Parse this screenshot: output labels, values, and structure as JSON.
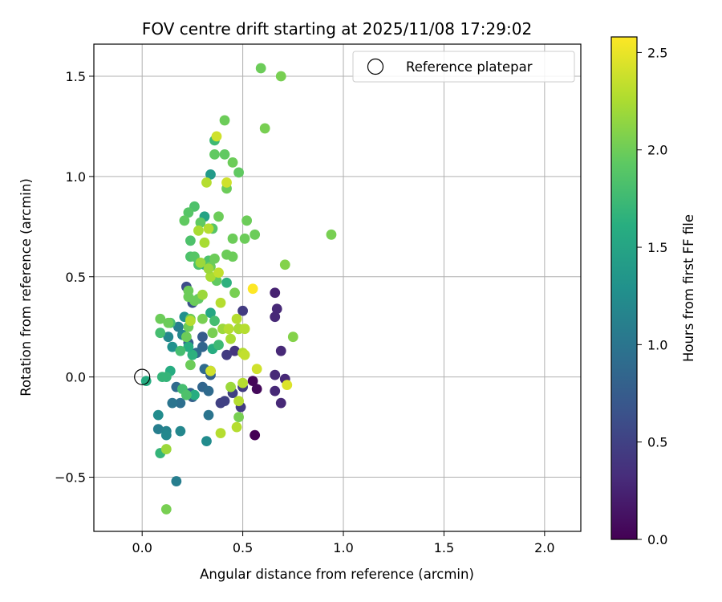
{
  "chart_data": {
    "type": "scatter",
    "title": "FOV centre drift starting at 2025/11/08 17:29:02",
    "xlabel": "Angular distance from reference (arcmin)",
    "ylabel": "Rotation from reference (arcmin)",
    "xlim": [
      -0.24,
      2.18
    ],
    "ylim": [
      -0.77,
      1.66
    ],
    "xticks": [
      0.0,
      0.5,
      1.0,
      1.5,
      2.0
    ],
    "xtick_labels": [
      "0.0",
      "0.5",
      "1.0",
      "1.5",
      "2.0"
    ],
    "yticks": [
      -0.5,
      0.0,
      0.5,
      1.0,
      1.5
    ],
    "ytick_labels": [
      "−0.5",
      "0.0",
      "0.5",
      "1.0",
      "1.5"
    ],
    "grid": true,
    "legend": {
      "label": "Reference platepar",
      "location": "top-right"
    },
    "reference_point": {
      "x": 0.0,
      "y": 0.0
    },
    "colorbar": {
      "label": "Hours from first FF file",
      "range": [
        0.0,
        2.58
      ],
      "ticks": [
        0.0,
        0.5,
        1.0,
        1.5,
        2.0,
        2.5
      ],
      "tick_labels": [
        "0.0",
        "0.5",
        "1.0",
        "1.5",
        "2.0",
        "2.5"
      ],
      "colormap": "viridis"
    },
    "points": [
      {
        "x": 0.56,
        "y": -0.29,
        "t": 0.0
      },
      {
        "x": 0.55,
        "y": -0.02,
        "t": 0.03
      },
      {
        "x": 0.57,
        "y": -0.06,
        "t": 0.05
      },
      {
        "x": 0.66,
        "y": 0.42,
        "t": 0.25
      },
      {
        "x": 0.67,
        "y": 0.34,
        "t": 0.3
      },
      {
        "x": 0.66,
        "y": 0.3,
        "t": 0.3
      },
      {
        "x": 0.69,
        "y": 0.13,
        "t": 0.3
      },
      {
        "x": 0.66,
        "y": 0.01,
        "t": 0.3
      },
      {
        "x": 0.71,
        "y": -0.01,
        "t": 0.3
      },
      {
        "x": 0.66,
        "y": -0.07,
        "t": 0.3
      },
      {
        "x": 0.69,
        "y": -0.13,
        "t": 0.3
      },
      {
        "x": 0.5,
        "y": 0.33,
        "t": 0.45
      },
      {
        "x": 0.48,
        "y": 0.24,
        "t": 0.45
      },
      {
        "x": 0.46,
        "y": 0.13,
        "t": 0.4
      },
      {
        "x": 0.42,
        "y": 0.11,
        "t": 0.45
      },
      {
        "x": 0.5,
        "y": -0.05,
        "t": 0.45
      },
      {
        "x": 0.45,
        "y": -0.08,
        "t": 0.5
      },
      {
        "x": 0.49,
        "y": -0.15,
        "t": 0.45
      },
      {
        "x": 0.41,
        "y": -0.12,
        "t": 0.5
      },
      {
        "x": 0.39,
        "y": -0.13,
        "t": 0.5
      },
      {
        "x": 0.22,
        "y": 0.45,
        "t": 0.6
      },
      {
        "x": 0.25,
        "y": 0.37,
        "t": 0.65
      },
      {
        "x": 0.3,
        "y": 0.2,
        "t": 0.75
      },
      {
        "x": 0.23,
        "y": 0.17,
        "t": 0.8
      },
      {
        "x": 0.3,
        "y": 0.15,
        "t": 0.85
      },
      {
        "x": 0.27,
        "y": 0.12,
        "t": 0.9
      },
      {
        "x": 0.31,
        "y": 0.04,
        "t": 0.9
      },
      {
        "x": 0.34,
        "y": 0.03,
        "t": 0.85
      },
      {
        "x": 0.34,
        "y": 0.01,
        "t": 0.8
      },
      {
        "x": 0.3,
        "y": -0.05,
        "t": 0.85
      },
      {
        "x": 0.33,
        "y": -0.07,
        "t": 0.9
      },
      {
        "x": 0.24,
        "y": -0.08,
        "t": 0.85
      },
      {
        "x": 0.25,
        "y": -0.1,
        "t": 0.8
      },
      {
        "x": 0.33,
        "y": -0.19,
        "t": 1.0
      },
      {
        "x": 0.32,
        "y": -0.32,
        "t": 1.25
      },
      {
        "x": 0.17,
        "y": -0.05,
        "t": 0.9
      },
      {
        "x": 0.19,
        "y": -0.13,
        "t": 0.95
      },
      {
        "x": 0.15,
        "y": -0.13,
        "t": 1.0
      },
      {
        "x": 0.19,
        "y": -0.27,
        "t": 1.2
      },
      {
        "x": 0.08,
        "y": -0.26,
        "t": 1.1
      },
      {
        "x": 0.12,
        "y": -0.27,
        "t": 1.15
      },
      {
        "x": 0.12,
        "y": -0.29,
        "t": 1.2
      },
      {
        "x": 0.08,
        "y": -0.19,
        "t": 1.25
      },
      {
        "x": 0.17,
        "y": -0.52,
        "t": 1.1
      },
      {
        "x": 0.18,
        "y": 0.25,
        "t": 1.1
      },
      {
        "x": 0.2,
        "y": 0.21,
        "t": 1.2
      },
      {
        "x": 0.13,
        "y": 0.2,
        "t": 1.2
      },
      {
        "x": 0.15,
        "y": 0.15,
        "t": 1.3
      },
      {
        "x": 0.21,
        "y": 0.3,
        "t": 1.3
      },
      {
        "x": 0.34,
        "y": 1.01,
        "t": 1.4
      },
      {
        "x": 0.31,
        "y": 0.8,
        "t": 1.5
      },
      {
        "x": 0.31,
        "y": 0.56,
        "t": 1.5
      },
      {
        "x": 0.34,
        "y": 0.32,
        "t": 1.55
      },
      {
        "x": 0.35,
        "y": 0.14,
        "t": 1.6
      },
      {
        "x": 0.25,
        "y": 0.11,
        "t": 1.65
      },
      {
        "x": 0.23,
        "y": 0.15,
        "t": 1.6
      },
      {
        "x": 0.26,
        "y": -0.09,
        "t": 1.6
      },
      {
        "x": 0.14,
        "y": 0.03,
        "t": 1.6
      },
      {
        "x": 0.12,
        "y": 0.0,
        "t": 1.7
      },
      {
        "x": 0.1,
        "y": 0.0,
        "t": 1.7
      },
      {
        "x": 0.02,
        "y": -0.02,
        "t": 1.6
      },
      {
        "x": 0.09,
        "y": -0.38,
        "t": 1.7
      },
      {
        "x": 0.36,
        "y": 1.18,
        "t": 1.75
      },
      {
        "x": 0.42,
        "y": 0.47,
        "t": 1.65
      },
      {
        "x": 0.38,
        "y": 0.16,
        "t": 1.75
      },
      {
        "x": 0.2,
        "y": -0.06,
        "t": 1.8
      },
      {
        "x": 0.22,
        "y": -0.09,
        "t": 1.85
      },
      {
        "x": 0.36,
        "y": 0.28,
        "t": 1.8
      },
      {
        "x": 0.14,
        "y": 0.27,
        "t": 1.8
      },
      {
        "x": 0.09,
        "y": 0.22,
        "t": 1.8
      },
      {
        "x": 0.19,
        "y": 0.13,
        "t": 1.8
      },
      {
        "x": 0.24,
        "y": 0.68,
        "t": 1.85
      },
      {
        "x": 0.26,
        "y": 0.85,
        "t": 1.85
      },
      {
        "x": 0.23,
        "y": 0.82,
        "t": 1.9
      },
      {
        "x": 0.21,
        "y": 0.78,
        "t": 1.95
      },
      {
        "x": 0.24,
        "y": 0.6,
        "t": 1.85
      },
      {
        "x": 0.26,
        "y": 0.6,
        "t": 1.9
      },
      {
        "x": 0.28,
        "y": 0.56,
        "t": 1.85
      },
      {
        "x": 0.33,
        "y": 0.58,
        "t": 1.85
      },
      {
        "x": 0.35,
        "y": 0.74,
        "t": 1.9
      },
      {
        "x": 0.29,
        "y": 0.77,
        "t": 1.95
      },
      {
        "x": 0.36,
        "y": 1.11,
        "t": 1.95
      },
      {
        "x": 0.41,
        "y": 1.11,
        "t": 1.95
      },
      {
        "x": 0.41,
        "y": 1.28,
        "t": 2.0
      },
      {
        "x": 0.45,
        "y": 1.07,
        "t": 2.0
      },
      {
        "x": 0.48,
        "y": 1.02,
        "t": 1.95
      },
      {
        "x": 0.42,
        "y": 0.94,
        "t": 2.0
      },
      {
        "x": 0.38,
        "y": 0.8,
        "t": 2.0
      },
      {
        "x": 0.52,
        "y": 0.78,
        "t": 2.0
      },
      {
        "x": 0.56,
        "y": 0.71,
        "t": 2.0
      },
      {
        "x": 0.45,
        "y": 0.69,
        "t": 2.0
      },
      {
        "x": 0.51,
        "y": 0.69,
        "t": 2.0
      },
      {
        "x": 0.42,
        "y": 0.61,
        "t": 2.0
      },
      {
        "x": 0.45,
        "y": 0.6,
        "t": 2.0
      },
      {
        "x": 0.36,
        "y": 0.59,
        "t": 2.0
      },
      {
        "x": 0.37,
        "y": 0.48,
        "t": 1.95
      },
      {
        "x": 0.34,
        "y": 0.55,
        "t": 2.0
      },
      {
        "x": 0.46,
        "y": 0.42,
        "t": 2.05
      },
      {
        "x": 0.28,
        "y": 0.39,
        "t": 1.95
      },
      {
        "x": 0.23,
        "y": 0.4,
        "t": 2.0
      },
      {
        "x": 0.23,
        "y": 0.43,
        "t": 2.0
      },
      {
        "x": 0.26,
        "y": 0.38,
        "t": 2.0
      },
      {
        "x": 0.3,
        "y": 0.29,
        "t": 2.05
      },
      {
        "x": 0.24,
        "y": 0.29,
        "t": 2.0
      },
      {
        "x": 0.23,
        "y": 0.25,
        "t": 2.0
      },
      {
        "x": 0.22,
        "y": 0.2,
        "t": 2.0
      },
      {
        "x": 0.35,
        "y": 0.22,
        "t": 2.05
      },
      {
        "x": 0.13,
        "y": 0.27,
        "t": 2.0
      },
      {
        "x": 0.09,
        "y": 0.29,
        "t": 2.0
      },
      {
        "x": 0.24,
        "y": 0.06,
        "t": 2.0
      },
      {
        "x": 0.48,
        "y": -0.2,
        "t": 2.05
      },
      {
        "x": 0.59,
        "y": 1.54,
        "t": 2.0
      },
      {
        "x": 0.69,
        "y": 1.5,
        "t": 2.05
      },
      {
        "x": 0.61,
        "y": 1.24,
        "t": 2.05
      },
      {
        "x": 0.94,
        "y": 0.71,
        "t": 2.05
      },
      {
        "x": 0.71,
        "y": 0.56,
        "t": 2.1
      },
      {
        "x": 0.75,
        "y": 0.2,
        "t": 2.1
      },
      {
        "x": 0.47,
        "y": 0.29,
        "t": 2.3
      },
      {
        "x": 0.4,
        "y": 0.24,
        "t": 2.2
      },
      {
        "x": 0.43,
        "y": 0.24,
        "t": 2.3
      },
      {
        "x": 0.44,
        "y": 0.19,
        "t": 2.25
      },
      {
        "x": 0.48,
        "y": 0.24,
        "t": 2.25
      },
      {
        "x": 0.51,
        "y": 0.24,
        "t": 2.3
      },
      {
        "x": 0.5,
        "y": 0.12,
        "t": 2.3
      },
      {
        "x": 0.51,
        "y": 0.11,
        "t": 2.35
      },
      {
        "x": 0.39,
        "y": 0.37,
        "t": 2.3
      },
      {
        "x": 0.34,
        "y": 0.5,
        "t": 2.25
      },
      {
        "x": 0.38,
        "y": 0.52,
        "t": 2.35
      },
      {
        "x": 0.33,
        "y": 0.54,
        "t": 2.2
      },
      {
        "x": 0.3,
        "y": 0.41,
        "t": 2.2
      },
      {
        "x": 0.29,
        "y": 0.57,
        "t": 2.2
      },
      {
        "x": 0.31,
        "y": 0.67,
        "t": 2.25
      },
      {
        "x": 0.28,
        "y": 0.73,
        "t": 2.25
      },
      {
        "x": 0.33,
        "y": 0.74,
        "t": 2.3
      },
      {
        "x": 0.32,
        "y": 0.97,
        "t": 2.3
      },
      {
        "x": 0.42,
        "y": 0.97,
        "t": 2.4
      },
      {
        "x": 0.37,
        "y": 1.2,
        "t": 2.4
      },
      {
        "x": 0.24,
        "y": 0.28,
        "t": 2.3
      },
      {
        "x": 0.34,
        "y": 0.03,
        "t": 2.4
      },
      {
        "x": 0.48,
        "y": -0.12,
        "t": 2.3
      },
      {
        "x": 0.47,
        "y": -0.25,
        "t": 2.3
      },
      {
        "x": 0.39,
        "y": -0.28,
        "t": 2.3
      },
      {
        "x": 0.12,
        "y": -0.36,
        "t": 2.2
      },
      {
        "x": 0.44,
        "y": -0.05,
        "t": 2.2
      },
      {
        "x": 0.5,
        "y": -0.03,
        "t": 2.3
      },
      {
        "x": 0.57,
        "y": 0.04,
        "t": 2.4
      },
      {
        "x": 0.72,
        "y": -0.04,
        "t": 2.45
      },
      {
        "x": 0.55,
        "y": 0.44,
        "t": 2.58
      },
      {
        "x": 0.12,
        "y": -0.66,
        "t": 2.05
      }
    ]
  }
}
